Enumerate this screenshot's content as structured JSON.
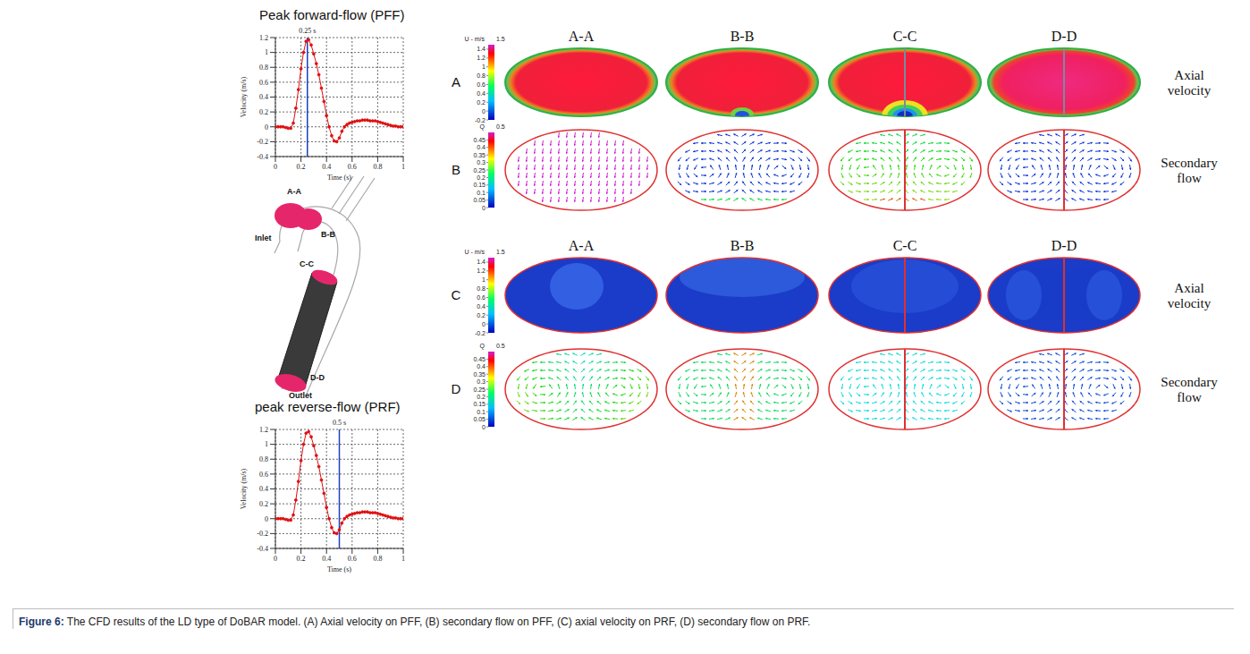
{
  "chart_data": [
    {
      "type": "line",
      "title": "Peak forward-flow (PFF)",
      "x_label": "Time (s)",
      "y_label": "Velocity (m/s)",
      "x": [
        0,
        0.02,
        0.04,
        0.06,
        0.08,
        0.1,
        0.12,
        0.14,
        0.16,
        0.18,
        0.2,
        0.22,
        0.24,
        0.26,
        0.28,
        0.3,
        0.32,
        0.34,
        0.36,
        0.38,
        0.4,
        0.42,
        0.44,
        0.46,
        0.48,
        0.5,
        0.52,
        0.54,
        0.56,
        0.58,
        0.6,
        0.62,
        0.64,
        0.66,
        0.68,
        0.7,
        0.72,
        0.74,
        0.76,
        0.78,
        0.8,
        0.82,
        0.84,
        0.86,
        0.88,
        0.9,
        0.92,
        0.94,
        0.96,
        0.98,
        1
      ],
      "values": [
        0,
        0,
        0,
        0,
        -0.01,
        -0.02,
        -0.02,
        0.05,
        0.25,
        0.5,
        0.78,
        1.0,
        1.15,
        1.17,
        1.1,
        0.98,
        0.85,
        0.7,
        0.52,
        0.34,
        0.15,
        0.0,
        -0.12,
        -0.19,
        -0.2,
        -0.15,
        -0.06,
        0.0,
        0.03,
        0.05,
        0.06,
        0.07,
        0.08,
        0.08,
        0.09,
        0.09,
        0.09,
        0.08,
        0.08,
        0.08,
        0.07,
        0.06,
        0.05,
        0.04,
        0.03,
        0.02,
        0.01,
        0.01,
        0,
        0,
        0
      ],
      "color": "#e01010",
      "marker": "dot",
      "line_style": "solid",
      "xlim": [
        0,
        1
      ],
      "xticks": [
        0,
        0.2,
        0.4,
        0.6,
        0.8,
        1
      ],
      "ylim": [
        -0.4,
        1.2
      ],
      "yticks": [
        -0.4,
        -0.2,
        0,
        0.2,
        0.4,
        0.6,
        0.8,
        1,
        1.2
      ],
      "grid": true,
      "annotations": [
        {
          "x": 0.25,
          "label": "0.25 s",
          "color": "#1f3fbf"
        }
      ]
    },
    {
      "type": "line",
      "title": "peak reverse-flow (PRF)",
      "x_label": "Time (s)",
      "y_label": "Velocity (m/s)",
      "x": [
        0,
        0.02,
        0.04,
        0.06,
        0.08,
        0.1,
        0.12,
        0.14,
        0.16,
        0.18,
        0.2,
        0.22,
        0.24,
        0.26,
        0.28,
        0.3,
        0.32,
        0.34,
        0.36,
        0.38,
        0.4,
        0.42,
        0.44,
        0.46,
        0.48,
        0.5,
        0.52,
        0.54,
        0.56,
        0.58,
        0.6,
        0.62,
        0.64,
        0.66,
        0.68,
        0.7,
        0.72,
        0.74,
        0.76,
        0.78,
        0.8,
        0.82,
        0.84,
        0.86,
        0.88,
        0.9,
        0.92,
        0.94,
        0.96,
        0.98,
        1
      ],
      "values": [
        0,
        0,
        0,
        0,
        -0.01,
        -0.02,
        -0.02,
        0.05,
        0.25,
        0.5,
        0.78,
        1.0,
        1.15,
        1.17,
        1.1,
        0.98,
        0.85,
        0.7,
        0.52,
        0.34,
        0.15,
        0.0,
        -0.12,
        -0.19,
        -0.2,
        -0.15,
        -0.06,
        0.0,
        0.03,
        0.05,
        0.06,
        0.07,
        0.08,
        0.08,
        0.09,
        0.09,
        0.09,
        0.08,
        0.08,
        0.08,
        0.07,
        0.06,
        0.05,
        0.04,
        0.03,
        0.02,
        0.01,
        0.01,
        0,
        0,
        0
      ],
      "color": "#e01010",
      "marker": "dot",
      "line_style": "solid",
      "xlim": [
        0,
        1
      ],
      "xticks": [
        0,
        0.2,
        0.4,
        0.6,
        0.8,
        1
      ],
      "ylim": [
        -0.4,
        1.2
      ],
      "yticks": [
        -0.4,
        -0.2,
        0,
        0.2,
        0.4,
        0.6,
        0.8,
        1,
        1.2
      ],
      "grid": true,
      "annotations": [
        {
          "x": 0.5,
          "label": "0.5 s",
          "color": "#1f3fbf"
        }
      ]
    }
  ],
  "model": {
    "labels": [
      "A-A",
      "Inlet",
      "B-B",
      "C-C",
      "D-D",
      "Outlet"
    ]
  },
  "contours": {
    "sections": [
      "A-A",
      "B-B",
      "C-C",
      "D-D"
    ],
    "rows": [
      {
        "letter": "A",
        "label": "Axial velocity",
        "colorbar": {
          "title": "U - m/s",
          "range": [
            -0.2,
            1.5
          ],
          "ticks": [
            -0.2,
            0,
            0.2,
            0.4,
            0.6,
            0.8,
            1,
            1.2,
            1.4
          ]
        }
      },
      {
        "letter": "B",
        "label": "Secondary flow",
        "colorbar": {
          "title": "Q",
          "range": [
            0,
            0.5
          ],
          "ticks": [
            0,
            0.05,
            0.1,
            0.15,
            0.2,
            0.25,
            0.3,
            0.35,
            0.4,
            0.45
          ]
        }
      },
      {
        "letter": "C",
        "label": "Axial velocity",
        "colorbar": {
          "title": "U - m/s",
          "range": [
            -0.2,
            1.5
          ],
          "ticks": [
            -0.2,
            0,
            0.2,
            0.4,
            0.6,
            0.8,
            1,
            1.2,
            1.4
          ]
        }
      },
      {
        "letter": "D",
        "label": "Secondary flow",
        "colorbar": {
          "title": "Q",
          "range": [
            0,
            0.5
          ],
          "ticks": [
            0,
            0.05,
            0.1,
            0.15,
            0.2,
            0.25,
            0.3,
            0.35,
            0.4,
            0.45
          ]
        }
      }
    ]
  },
  "caption": {
    "label": "Figure 6:",
    "text": "The CFD results of the LD type of DoBAR model. (A) Axial velocity on PFF, (B) secondary flow on PFF, (C) axial velocity on PRF, (D) secondary flow on PRF."
  }
}
